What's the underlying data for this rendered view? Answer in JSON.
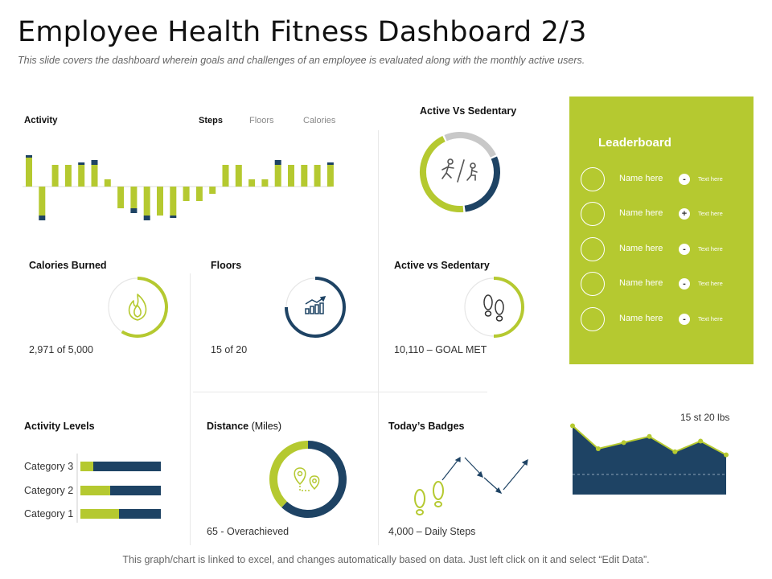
{
  "header": {
    "title": "Employee Health Fitness Dashboard 2/3",
    "subtitle": "This slide covers the dashboard wherein goals and challenges of an employee is evaluated along with the monthly active users."
  },
  "colors": {
    "green": "#b5c930",
    "navy": "#1e4364",
    "gray": "#c8c8c8"
  },
  "activity": {
    "label": "Activity",
    "legend": [
      "Steps",
      "Floors",
      "Calories"
    ],
    "chart_data": {
      "type": "bar",
      "green_values": [
        4,
        -4,
        3,
        3,
        3,
        3,
        1,
        -3,
        -3,
        -4,
        -4,
        -4,
        -2,
        -2,
        -1,
        3,
        3,
        1,
        1,
        3,
        3,
        3,
        3,
        3
      ],
      "navy_values": [
        1,
        -2,
        0,
        0,
        1,
        2,
        0,
        0,
        -2,
        -2,
        0,
        -1,
        0,
        0,
        0,
        0,
        0,
        0,
        0,
        2,
        0,
        0,
        0,
        1
      ]
    }
  },
  "active_vs_sedentary_top": {
    "label": "Active Vs Sedentary",
    "icon": "active-sedentary-icon",
    "active_fraction": 0.45,
    "navy_fraction": 0.3,
    "gray_fraction": 0.25
  },
  "calories": {
    "label": "Calories Burned",
    "value_text": "2,971  of 5,000",
    "icon": "flame-icon",
    "progress": 0.59
  },
  "floors": {
    "label": "Floors",
    "value_text": "15 of 20",
    "icon": "bar-chart-icon",
    "progress": 0.75
  },
  "active_vs_sedentary": {
    "label": "Active vs Sedentary",
    "value_text": "10,110 – GOAL  MET",
    "icon": "footprints-icon",
    "progress": 0.5
  },
  "activity_levels": {
    "label": "Activity Levels",
    "chart_data": {
      "type": "bar",
      "categories": [
        "Category 3",
        "Category 2",
        "Category 1"
      ],
      "series": [
        {
          "values": [
            16,
            37,
            48
          ]
        },
        {
          "values": [
            84,
            63,
            52
          ]
        }
      ]
    }
  },
  "distance": {
    "label": "Distance",
    "unit": "(Miles)",
    "value_text": "65 - Overachieved",
    "icon": "map-pin-icon",
    "green_fraction": 0.38
  },
  "badges": {
    "label": "Today’s Badges",
    "value_text": "4,000 – Daily Steps",
    "icon": "footprints-icon"
  },
  "weight_chart": {
    "label": "15 st 20 lbs",
    "chart_data": {
      "type": "area",
      "values": [
        90,
        60,
        68,
        76,
        56,
        70,
        52
      ],
      "ylim": [
        0,
        100
      ]
    }
  },
  "leaderboard": {
    "title": "Leaderboard",
    "rows": [
      {
        "name": "Name here",
        "sign": "-",
        "text": "Text here"
      },
      {
        "name": "Name here",
        "sign": "+",
        "text": "Text here"
      },
      {
        "name": "Name here",
        "sign": "-",
        "text": "Text here"
      },
      {
        "name": "Name here",
        "sign": "-",
        "text": "Text here"
      },
      {
        "name": "Name here",
        "sign": "-",
        "text": "Text here"
      }
    ]
  },
  "footer": {
    "text": "This graph/chart is linked to excel, and changes automatically based on data. Just left click on it and select “Edit Data”."
  }
}
